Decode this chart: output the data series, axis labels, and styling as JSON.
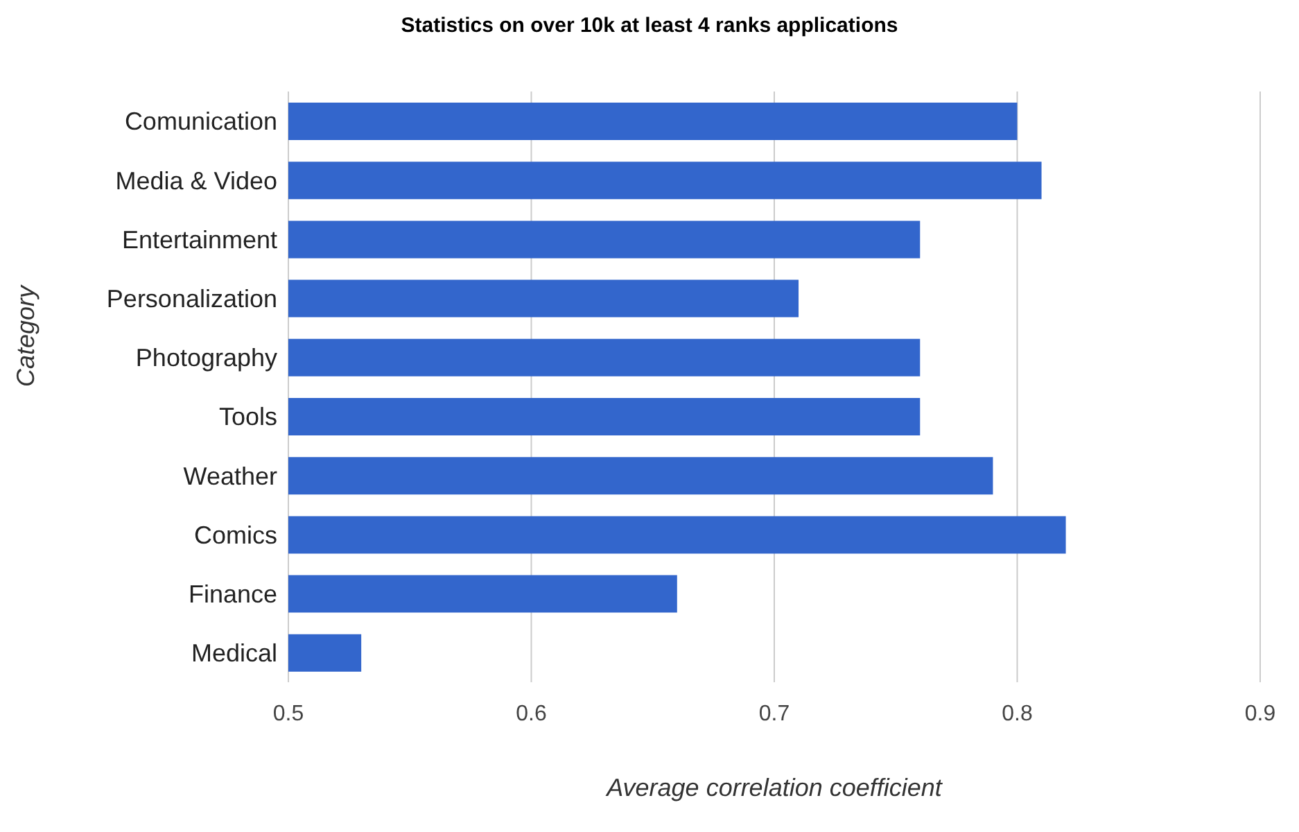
{
  "chart_data": {
    "type": "bar",
    "orientation": "horizontal",
    "title": "Statistics on over 10k at least 4 ranks applications",
    "xlabel": "Average correlation coefficient",
    "ylabel": "Category",
    "categories": [
      "Comunication",
      "Media & Video",
      "Entertainment",
      "Personalization",
      "Photography",
      "Tools",
      "Weather",
      "Comics",
      "Finance",
      "Medical"
    ],
    "values": [
      0.8,
      0.81,
      0.76,
      0.71,
      0.76,
      0.76,
      0.79,
      0.82,
      0.66,
      0.53
    ],
    "color": "#3366cc",
    "xlim": [
      0.5,
      0.9
    ],
    "xticks": [
      0.5,
      0.6,
      0.7,
      0.8,
      0.9
    ],
    "grid": "x"
  }
}
